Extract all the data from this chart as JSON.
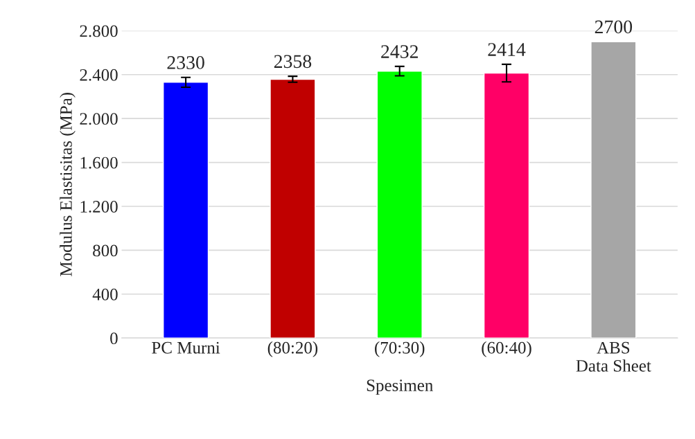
{
  "chart_data": {
    "type": "bar",
    "xlabel": "Spesimen",
    "ylabel": "Modulus Elastisitas (MPa)",
    "categories": [
      "PC Murni",
      "(80:20)",
      "(70:30)",
      "(60:40)",
      "ABS\nData Sheet"
    ],
    "values": [
      2330,
      2358,
      2432,
      2414,
      2700
    ],
    "colors": [
      "#0000ff",
      "#c00000",
      "#00ff00",
      "#ff0066",
      "#a6a6a6"
    ],
    "errors": [
      45,
      27,
      43,
      80,
      null
    ],
    "ylim": [
      0,
      2800
    ],
    "yticks": [
      {
        "value": 0,
        "label": "0"
      },
      {
        "value": 400,
        "label": "400"
      },
      {
        "value": 800,
        "label": "800"
      },
      {
        "value": 1200,
        "label": "1.200"
      },
      {
        "value": 1600,
        "label": "1.600"
      },
      {
        "value": 2000,
        "label": "2.000"
      },
      {
        "value": 2400,
        "label": "2.400"
      },
      {
        "value": 2800,
        "label": "2.800"
      }
    ],
    "grid": "y",
    "data_labels": true
  }
}
